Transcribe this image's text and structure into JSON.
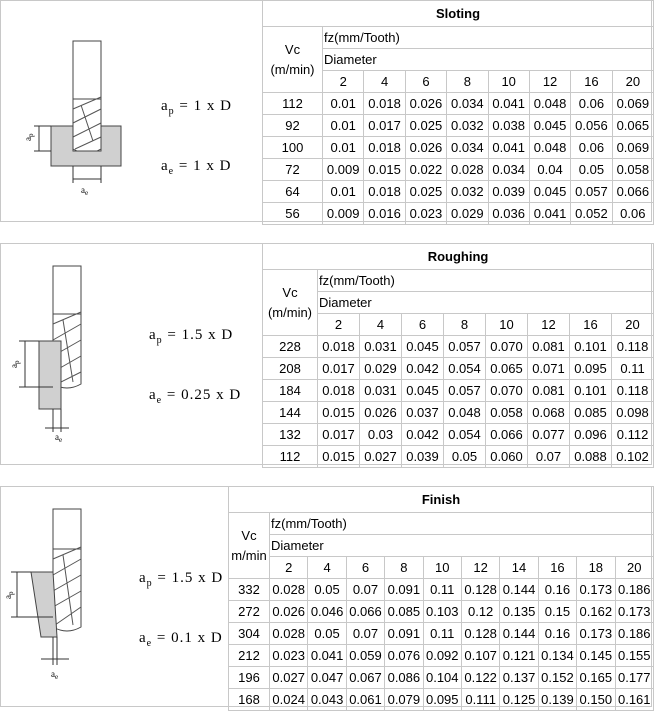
{
  "sections": [
    {
      "title": "Sloting",
      "formula": {
        "ap": {
          "symbol": "a",
          "sub": "p",
          "expr": " = 1 x D"
        },
        "ae": {
          "symbol": "a",
          "sub": "e",
          "expr": " = 1 x D"
        }
      },
      "diagram_labels": {
        "ap": {
          "symbol": "a",
          "sub": "p"
        },
        "ae": {
          "symbol": "a",
          "sub": "e"
        }
      },
      "table": {
        "vc_header": "Vc",
        "vc_unit": "(m/min)",
        "fz_header": "fz(mm/Tooth)",
        "diameter_header": "Diameter",
        "diameters": [
          "2",
          "4",
          "6",
          "8",
          "10",
          "12",
          "16",
          "20"
        ],
        "rows": [
          {
            "vc": "112",
            "fz": [
              "0.01",
              "0.018",
              "0.026",
              "0.034",
              "0.041",
              "0.048",
              "0.06",
              "0.069"
            ]
          },
          {
            "vc": "92",
            "fz": [
              "0.01",
              "0.017",
              "0.025",
              "0.032",
              "0.038",
              "0.045",
              "0.056",
              "0.065"
            ]
          },
          {
            "vc": "100",
            "fz": [
              "0.01",
              "0.018",
              "0.026",
              "0.034",
              "0.041",
              "0.048",
              "0.06",
              "0.069"
            ]
          },
          {
            "vc": "72",
            "fz": [
              "0.009",
              "0.015",
              "0.022",
              "0.028",
              "0.034",
              "0.04",
              "0.05",
              "0.058"
            ]
          },
          {
            "vc": "64",
            "fz": [
              "0.01",
              "0.018",
              "0.025",
              "0.032",
              "0.039",
              "0.045",
              "0.057",
              "0.066"
            ]
          },
          {
            "vc": "56",
            "fz": [
              "0.009",
              "0.016",
              "0.023",
              "0.029",
              "0.036",
              "0.041",
              "0.052",
              "0.06"
            ]
          }
        ]
      }
    },
    {
      "title": "Roughing",
      "formula": {
        "ap": {
          "symbol": "a",
          "sub": "p",
          "expr": " = 1.5 x D"
        },
        "ae": {
          "symbol": "a",
          "sub": "e",
          "expr": " = 0.25 x D"
        }
      },
      "diagram_labels": {
        "ap": {
          "symbol": "a",
          "sub": "p"
        },
        "ae": {
          "symbol": "a",
          "sub": "e"
        }
      },
      "table": {
        "vc_header": "Vc",
        "vc_unit": "(m/min)",
        "fz_header": "fz(mm/Tooth)",
        "diameter_header": "Diameter",
        "diameters": [
          "2",
          "4",
          "6",
          "8",
          "10",
          "12",
          "16",
          "20"
        ],
        "rows": [
          {
            "vc": "228",
            "fz": [
              "0.018",
              "0.031",
              "0.045",
              "0.057",
              "0.070",
              "0.081",
              "0.101",
              "0.118"
            ]
          },
          {
            "vc": "208",
            "fz": [
              "0.017",
              "0.029",
              "0.042",
              "0.054",
              "0.065",
              "0.071",
              "0.095",
              "0.11"
            ]
          },
          {
            "vc": "184",
            "fz": [
              "0.018",
              "0.031",
              "0.045",
              "0.057",
              "0.070",
              "0.081",
              "0.101",
              "0.118"
            ]
          },
          {
            "vc": "144",
            "fz": [
              "0.015",
              "0.026",
              "0.037",
              "0.048",
              "0.058",
              "0.068",
              "0.085",
              "0.098"
            ]
          },
          {
            "vc": "132",
            "fz": [
              "0.017",
              "0.03",
              "0.042",
              "0.054",
              "0.066",
              "0.077",
              "0.096",
              "0.112"
            ]
          },
          {
            "vc": "112",
            "fz": [
              "0.015",
              "0.027",
              "0.039",
              "0.05",
              "0.060",
              "0.07",
              "0.088",
              "0.102"
            ]
          }
        ]
      }
    },
    {
      "title": "Finish",
      "formula": {
        "ap": {
          "symbol": "a",
          "sub": "p",
          "expr": " = 1.5 x D"
        },
        "ae": {
          "symbol": "a",
          "sub": "e",
          "expr": " = 0.1 x D"
        }
      },
      "diagram_labels": {
        "ap": {
          "symbol": "a",
          "sub": "p"
        },
        "ae": {
          "symbol": "a",
          "sub": "e"
        }
      },
      "table": {
        "vc_header": "Vc",
        "vc_unit": "m/min",
        "fz_header": "fz(mm/Tooth)",
        "diameter_header": "Diameter",
        "diameters": [
          "2",
          "4",
          "6",
          "8",
          "10",
          "12",
          "14",
          "16",
          "18",
          "20"
        ],
        "rows": [
          {
            "vc": "332",
            "fz": [
              "0.028",
              "0.05",
              "0.07",
              "0.091",
              "0.11",
              "0.128",
              "0.144",
              "0.16",
              "0.173",
              "0.186"
            ]
          },
          {
            "vc": "272",
            "fz": [
              "0.026",
              "0.046",
              "0.066",
              "0.085",
              "0.103",
              "0.12",
              "0.135",
              "0.15",
              "0.162",
              "0.173"
            ]
          },
          {
            "vc": "304",
            "fz": [
              "0.028",
              "0.05",
              "0.07",
              "0.091",
              "0.11",
              "0.128",
              "0.144",
              "0.16",
              "0.173",
              "0.186"
            ]
          },
          {
            "vc": "212",
            "fz": [
              "0.023",
              "0.041",
              "0.059",
              "0.076",
              "0.092",
              "0.107",
              "0.121",
              "0.134",
              "0.145",
              "0.155"
            ]
          },
          {
            "vc": "196",
            "fz": [
              "0.027",
              "0.047",
              "0.067",
              "0.086",
              "0.104",
              "0.122",
              "0.137",
              "0.152",
              "0.165",
              "0.177"
            ]
          },
          {
            "vc": "168",
            "fz": [
              "0.024",
              "0.043",
              "0.061",
              "0.079",
              "0.095",
              "0.111",
              "0.125",
              "0.139",
              "0.150",
              "0.161"
            ]
          }
        ]
      }
    }
  ]
}
